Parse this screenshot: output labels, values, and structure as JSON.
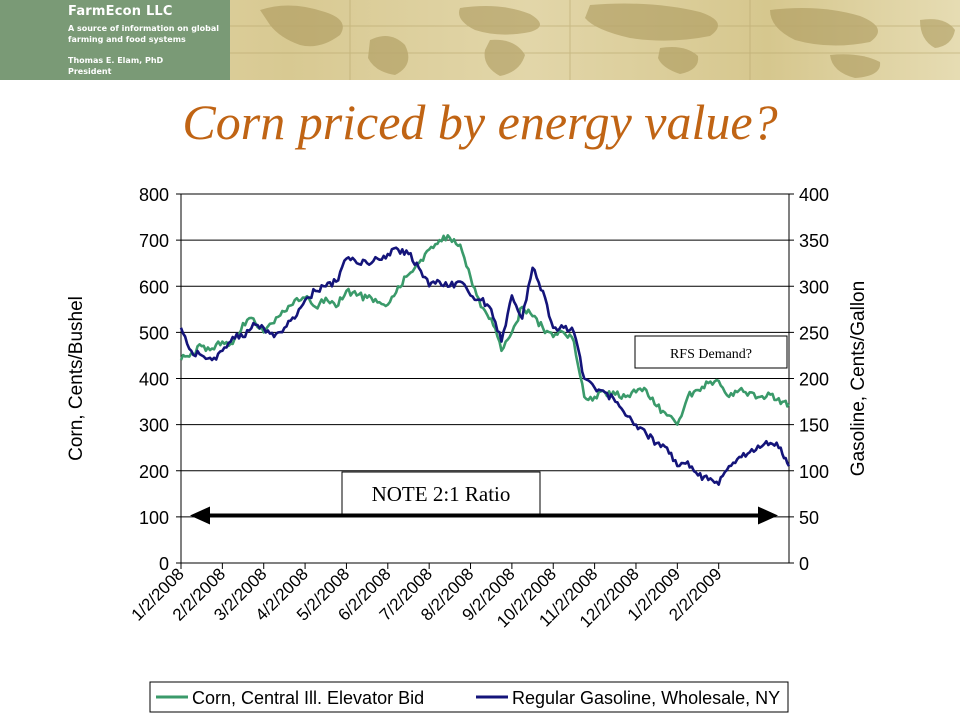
{
  "header": {
    "org_name": "FarmEcon LLC",
    "tagline": "A source of information on global farming and food systems",
    "person_name": "Thomas E. Elam, PhD",
    "person_title": "President"
  },
  "slide": {
    "title": "Corn priced by energy value?"
  },
  "chart_data": {
    "type": "line",
    "title": "",
    "xlabel": "",
    "ylabel": "Corn, Cents/Bushel",
    "y2label": "Gasoline, Cents/Gallon",
    "ylim": [
      0,
      800
    ],
    "y2lim": [
      0,
      400
    ],
    "yticks": [
      "0",
      "100",
      "200",
      "300",
      "400",
      "500",
      "600",
      "700",
      "800"
    ],
    "y2ticks": [
      "0",
      "50",
      "100",
      "150",
      "200",
      "250",
      "300",
      "350",
      "400"
    ],
    "categories": [
      "1/2/2008",
      "2/2/2008",
      "3/2/2008",
      "4/2/2008",
      "5/2/2008",
      "6/2/2008",
      "7/2/2008",
      "8/2/2008",
      "9/2/2008",
      "10/2/2008",
      "11/2/2008",
      "12/2/2008",
      "1/2/2009",
      "2/2/2009"
    ],
    "grid": true,
    "legend_position": "bottom",
    "series": [
      {
        "name": "Corn, Central Ill. Elevator Bid",
        "axis": "left",
        "color": "#3a9a6a",
        "x": [
          0,
          0.25,
          0.5,
          0.75,
          1,
          1.25,
          1.5,
          1.75,
          2,
          2.25,
          2.5,
          2.75,
          3,
          3.25,
          3.5,
          3.75,
          4,
          4.25,
          4.5,
          4.75,
          5,
          5.25,
          5.5,
          5.75,
          6,
          6.25,
          6.5,
          6.75,
          7,
          7.25,
          7.5,
          7.75,
          8,
          8.25,
          8.5,
          8.75,
          9,
          9.25,
          9.5,
          9.75,
          10,
          10.25,
          10.5,
          10.75,
          11,
          11.25,
          11.5,
          11.75,
          12,
          12.25,
          12.5,
          12.75,
          13,
          13.25,
          13.5,
          13.75,
          14,
          14.25,
          14.5,
          14.7
        ],
        "values": [
          440,
          455,
          470,
          465,
          480,
          475,
          520,
          530,
          500,
          520,
          545,
          570,
          575,
          555,
          575,
          555,
          590,
          580,
          575,
          565,
          560,
          600,
          625,
          650,
          680,
          700,
          705,
          690,
          620,
          555,
          530,
          460,
          500,
          555,
          535,
          510,
          490,
          500,
          480,
          360,
          360,
          370,
          365,
          360,
          370,
          375,
          340,
          320,
          300,
          360,
          375,
          390,
          395,
          360,
          375,
          370,
          360,
          365,
          345,
          345
        ]
      },
      {
        "name": "Regular Gasoline, Wholesale, NY",
        "axis": "right",
        "color": "#14147a",
        "x": [
          0,
          0.25,
          0.5,
          0.75,
          1,
          1.25,
          1.5,
          1.75,
          2,
          2.25,
          2.5,
          2.75,
          3,
          3.25,
          3.5,
          3.75,
          4,
          4.25,
          4.5,
          4.75,
          5,
          5.25,
          5.5,
          5.75,
          6,
          6.25,
          6.5,
          6.75,
          7,
          7.25,
          7.5,
          7.75,
          8,
          8.25,
          8.5,
          8.75,
          9,
          9.25,
          9.5,
          9.75,
          10,
          10.25,
          10.5,
          10.75,
          11,
          11.25,
          11.5,
          11.75,
          12,
          12.25,
          12.5,
          12.75,
          13,
          13.25,
          13.5,
          13.75,
          14,
          14.25,
          14.5,
          14.7
        ],
        "values": [
          255,
          230,
          225,
          220,
          230,
          245,
          245,
          260,
          255,
          245,
          255,
          265,
          285,
          295,
          300,
          305,
          330,
          325,
          325,
          330,
          335,
          340,
          335,
          320,
          300,
          305,
          300,
          305,
          290,
          285,
          275,
          240,
          290,
          265,
          320,
          295,
          255,
          255,
          250,
          200,
          190,
          185,
          175,
          160,
          150,
          140,
          130,
          125,
          105,
          110,
          95,
          90,
          85,
          105,
          115,
          120,
          125,
          130,
          125,
          105
        ]
      }
    ],
    "annotations": [
      {
        "text": "NOTE 2:1 Ratio",
        "style": "boxed-with-double-arrow"
      },
      {
        "text": "RFS Demand?",
        "style": "boxed"
      }
    ]
  }
}
